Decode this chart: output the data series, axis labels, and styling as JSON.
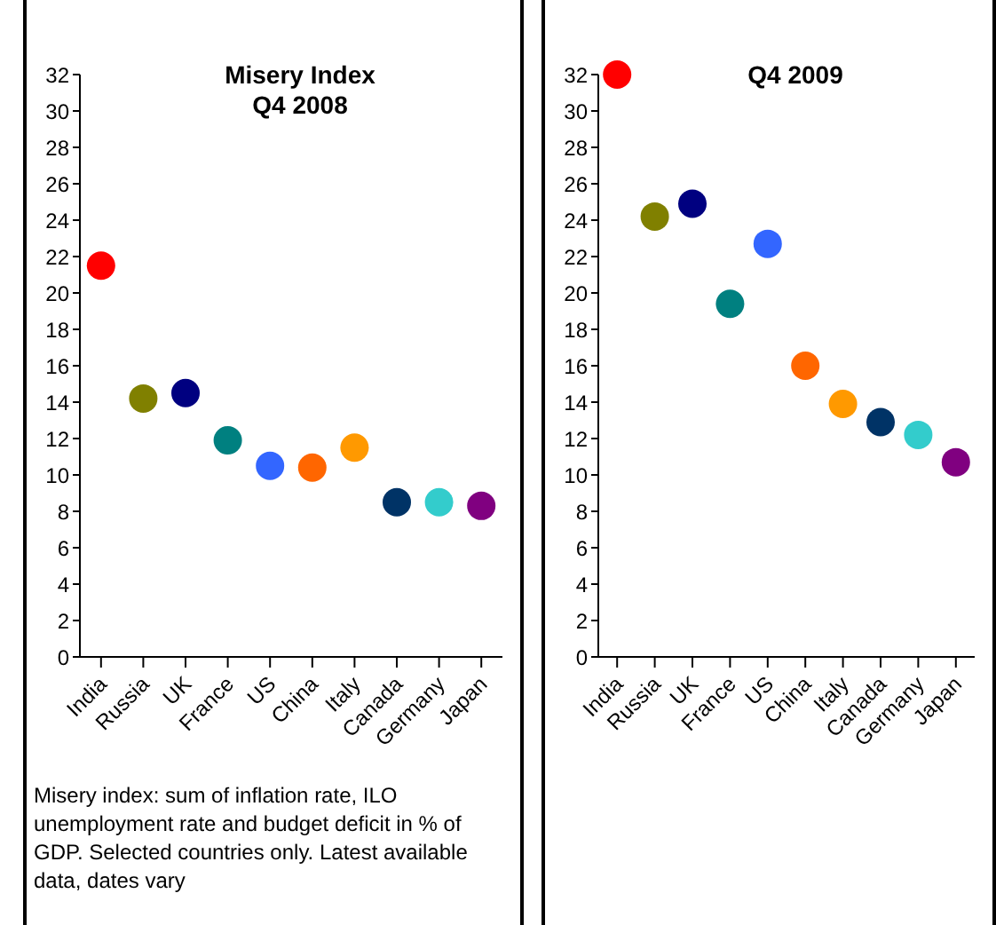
{
  "chart_data": [
    {
      "type": "scatter",
      "title": "Misery Index\nQ4 2008",
      "categories": [
        "India",
        "Russia",
        "UK",
        "France",
        "US",
        "China",
        "Italy",
        "Canada",
        "Germany",
        "Japan"
      ],
      "values": [
        21.5,
        14.2,
        14.5,
        11.9,
        10.5,
        10.4,
        11.5,
        8.5,
        8.5,
        8.3
      ],
      "colors": [
        "#ff0000",
        "#808000",
        "#000080",
        "#008080",
        "#3366ff",
        "#ff6600",
        "#ff9900",
        "#003366",
        "#33cccc",
        "#800080"
      ],
      "ylim": [
        0,
        32
      ],
      "yticks": [
        0,
        2,
        4,
        6,
        8,
        10,
        12,
        14,
        16,
        18,
        20,
        22,
        24,
        26,
        28,
        30,
        32
      ],
      "marker": "circle",
      "grid": false,
      "legend": false,
      "annotations": [
        "Misery index: sum of inflation rate, ILO unemployment rate and budget deficit in % of GDP. Selected countries only. Latest available data, dates vary"
      ]
    },
    {
      "type": "scatter",
      "title": "Q4 2009",
      "categories": [
        "India",
        "Russia",
        "UK",
        "France",
        "US",
        "China",
        "Italy",
        "Canada",
        "Germany",
        "Japan"
      ],
      "values": [
        32.0,
        24.2,
        24.9,
        19.4,
        22.7,
        16.0,
        13.9,
        12.9,
        12.2,
        10.7
      ],
      "colors": [
        "#ff0000",
        "#808000",
        "#000080",
        "#008080",
        "#3366ff",
        "#ff6600",
        "#ff9900",
        "#003366",
        "#33cccc",
        "#800080"
      ],
      "ylim": [
        0,
        32
      ],
      "yticks": [
        0,
        2,
        4,
        6,
        8,
        10,
        12,
        14,
        16,
        18,
        20,
        22,
        24,
        26,
        28,
        30,
        32
      ],
      "marker": "circle",
      "grid": false,
      "legend": false
    }
  ]
}
